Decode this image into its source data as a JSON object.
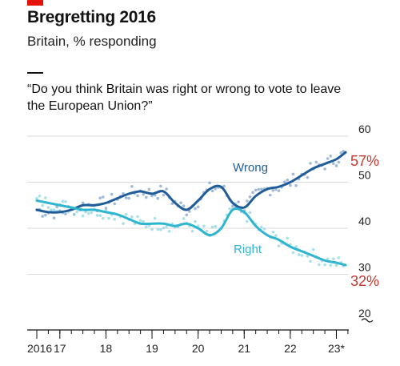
{
  "header": {
    "title": "Bregretting 2016",
    "subtitle": "Britain, % responding",
    "question": "“Do you think Britain was right or wrong to vote to leave the European Union?”"
  },
  "colors": {
    "wrong": "#1f5c99",
    "right": "#2fb5cf",
    "wrong_dots": "#7fa3cc",
    "right_dots": "#8ed6e3",
    "end_label": "#c8372d",
    "brand": "#e3120b"
  },
  "chart_data": {
    "type": "line",
    "ylim": [
      20,
      60
    ],
    "yticks": [
      20,
      30,
      40,
      50,
      60
    ],
    "xlim": [
      2016.4,
      2023.3
    ],
    "xticks": [
      {
        "v": 2016.5,
        "label": "2016"
      },
      {
        "v": 2017.0,
        "label": "17"
      },
      {
        "v": 2018.0,
        "label": "18"
      },
      {
        "v": 2019.0,
        "label": "19"
      },
      {
        "v": 2020.0,
        "label": "20"
      },
      {
        "v": 2021.0,
        "label": "21"
      },
      {
        "v": 2022.0,
        "label": "22"
      },
      {
        "v": 2023.0,
        "label": "23*"
      }
    ],
    "broken_axis": true,
    "series": [
      {
        "name": "Wrong",
        "end_label": "57%",
        "x": [
          2016.5,
          2016.75,
          2017.0,
          2017.25,
          2017.5,
          2017.75,
          2018.0,
          2018.25,
          2018.5,
          2018.75,
          2019.0,
          2019.25,
          2019.5,
          2019.75,
          2020.0,
          2020.25,
          2020.5,
          2020.75,
          2021.0,
          2021.25,
          2021.5,
          2021.75,
          2022.0,
          2022.25,
          2022.5,
          2022.75,
          2023.0,
          2023.2
        ],
        "values": [
          44,
          43.5,
          43.5,
          44,
          45,
          45,
          45.5,
          46.5,
          47.5,
          48,
          47.5,
          48,
          45.5,
          44,
          46,
          48.5,
          49,
          45.5,
          44.5,
          47,
          48.5,
          49,
          50,
          51.5,
          53,
          54,
          55,
          56.5
        ]
      },
      {
        "name": "Right",
        "end_label": "32%",
        "x": [
          2016.5,
          2016.75,
          2017.0,
          2017.25,
          2017.5,
          2017.75,
          2018.0,
          2018.25,
          2018.5,
          2018.75,
          2019.0,
          2019.25,
          2019.5,
          2019.75,
          2020.0,
          2020.25,
          2020.5,
          2020.75,
          2021.0,
          2021.25,
          2021.5,
          2021.75,
          2022.0,
          2022.25,
          2022.5,
          2022.75,
          2023.0,
          2023.2
        ],
        "values": [
          46,
          45.5,
          45,
          44.5,
          44,
          44,
          43.5,
          43,
          42,
          41,
          41,
          41,
          40.5,
          41,
          40,
          38.5,
          40,
          44,
          43.5,
          40.5,
          38.5,
          37.5,
          36,
          35,
          34,
          33,
          32.5,
          32
        ]
      }
    ]
  }
}
